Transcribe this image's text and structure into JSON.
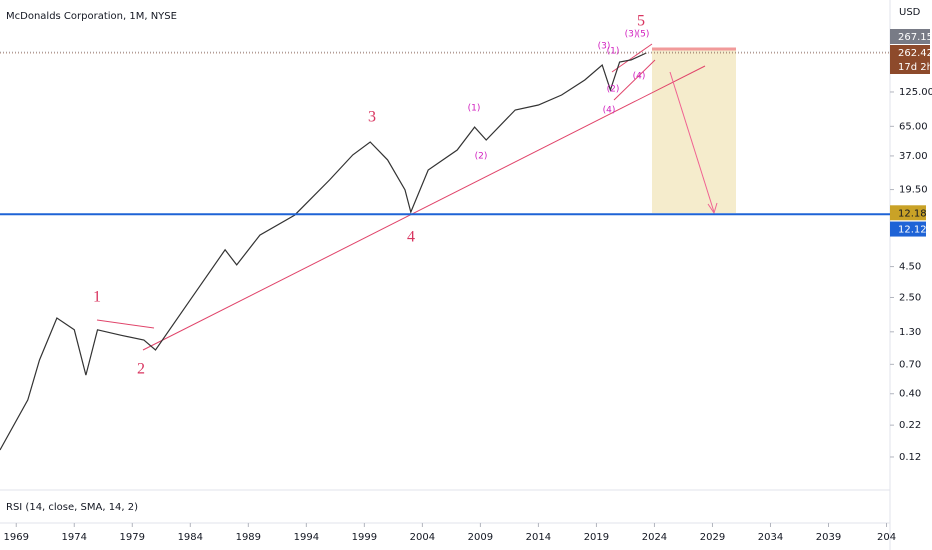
{
  "chart_data": {
    "type": "line",
    "title": "McDonalds Corporation, 1M, NYSE",
    "indicator": "RSI (14, close, SMA, 14, 2)",
    "currency": "USD",
    "log_scale": true,
    "color": "#333333",
    "x": [
      1967.6,
      1970,
      1971,
      1972.5,
      1974,
      1975,
      1976,
      1978,
      1980,
      1981,
      1984,
      1987,
      1988,
      1990,
      1993,
      1996,
      1998,
      1999.5,
      2001,
      2002.5,
      2003,
      2004.5,
      2007,
      2008.5,
      2009.5,
      2012,
      2014,
      2016,
      2018,
      2019.5,
      2020.2,
      2021,
      2022,
      2023.3
    ],
    "values": [
      0.137,
      0.356,
      0.76,
      1.69,
      1.35,
      0.57,
      1.35,
      1.22,
      1.11,
      0.92,
      2.39,
      6.2,
      4.65,
      8.2,
      12.0,
      23.4,
      37.7,
      48.2,
      34.3,
      19.4,
      12.7,
      28.3,
      41.4,
      64.1,
      50.1,
      88.7,
      97.5,
      118,
      157,
      209,
      130,
      221,
      230,
      262.42
    ],
    "xlim": [
      1967.6,
      2044.3
    ],
    "ylim": [
      0.064,
      720
    ],
    "xticks": [
      1969,
      1974,
      1979,
      1984,
      1989,
      1994,
      1999,
      2004,
      2009,
      2014,
      2019,
      2024,
      2029,
      2034,
      2039,
      {
        "value": 2044,
        "label": "204"
      }
    ],
    "yticks": [
      {
        "value": 125,
        "label": "125.00"
      },
      {
        "value": 65,
        "label": "65.00"
      },
      {
        "value": 37,
        "label": "37.00"
      },
      {
        "value": 19.5,
        "label": "19.50"
      },
      {
        "value": 4.5,
        "label": "4.50"
      },
      {
        "value": 2.5,
        "label": "2.50"
      },
      {
        "value": 1.3,
        "label": "1.30"
      },
      {
        "value": 0.7,
        "label": "0.70"
      },
      {
        "value": 0.4,
        "label": "0.40"
      },
      0.22,
      0.12
    ],
    "price_labels": [
      {
        "value": 267.15,
        "label": "267.15",
        "color": "#787b86"
      },
      {
        "value": 262.42,
        "label": "262.42",
        "color": "#8d4a2b"
      }
    ],
    "countdown": "17d 2h",
    "levels": [
      {
        "value": 12.18,
        "label": "12.18",
        "color": "#c9a227"
      },
      {
        "value": 12.12,
        "label": "12.12",
        "color": "#1e63d6"
      }
    ],
    "annotations": [
      "1",
      "2",
      "3",
      "4",
      "5",
      "(1)",
      "(2)",
      "(3)",
      "(1)",
      "(2)",
      "(4)",
      "(3)",
      "(5)",
      "(4)"
    ]
  }
}
